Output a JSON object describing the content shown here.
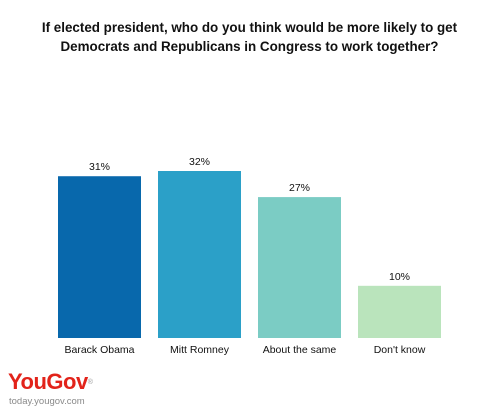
{
  "chart_data": {
    "type": "bar",
    "title_lines": [
      "If elected president, who do you think would be more likely to get",
      "Democrats and Republicans in Congress to work together?"
    ],
    "categories": [
      "Barack Obama",
      "Mitt Romney",
      "About the same",
      "Don't know"
    ],
    "values": [
      31,
      32,
      27,
      10
    ],
    "value_labels": [
      "31%",
      "32%",
      "27%",
      "10%"
    ],
    "colors": [
      "#0868ac",
      "#2ba0c8",
      "#7bccc4",
      "#bae4bc"
    ],
    "ylim": [
      0,
      32
    ],
    "grid": false,
    "legend": "none"
  },
  "branding": {
    "logo": "YouGov",
    "trademark": "®",
    "url": "today.yougov.com"
  }
}
